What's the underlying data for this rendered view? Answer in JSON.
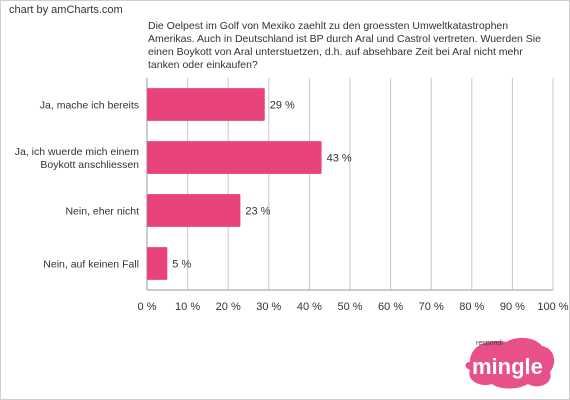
{
  "credit": "chart by amCharts.com",
  "question": "Die Oelpest im Golf von Mexiko zaehlt zu den groessten Umweltkatastrophen Amerikas. Auch in Deutschland ist BP durch Aral und Castrol vertreten. Wuerden Sie einen Boykott von Aral unterstuetzen, d.h. auf absehbare Zeit bei Aral nicht mehr tanken oder einkaufen?",
  "brand": {
    "small": "respondi",
    "name": "mingle"
  },
  "colors": {
    "bar": "#e8447a",
    "brand": "#e8508a",
    "grid": "#c8c8c8"
  },
  "chart_data": {
    "type": "bar",
    "orientation": "horizontal",
    "title": "",
    "categories": [
      [
        "Ja, mache ich bereits"
      ],
      [
        "Ja, ich wuerde mich einem",
        "Boykott anschliessen"
      ],
      [
        "Nein, eher nicht"
      ],
      [
        "Nein, auf keinen Fall"
      ]
    ],
    "values": [
      29,
      43,
      23,
      5
    ],
    "value_labels": [
      "29 %",
      "43 %",
      "23 %",
      "5 %"
    ],
    "xlim": [
      0,
      100
    ],
    "xticks": [
      "0 %",
      "10 %",
      "20 %",
      "30 %",
      "40 %",
      "50 %",
      "60 %",
      "70 %",
      "80 %",
      "90 %",
      "100 %"
    ],
    "grid": true
  }
}
